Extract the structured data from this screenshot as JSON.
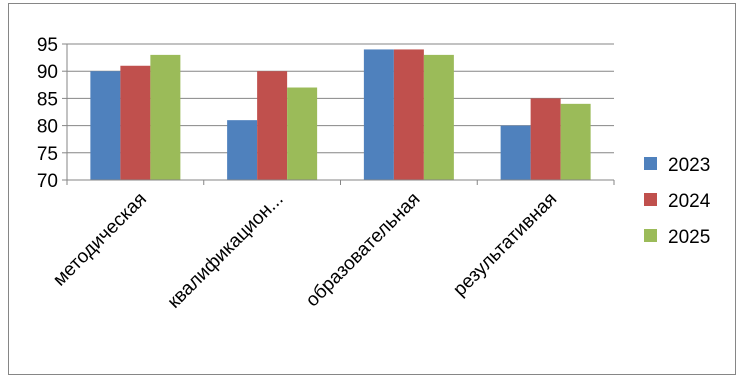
{
  "chart_data": {
    "type": "bar",
    "title": "",
    "xlabel": "",
    "ylabel": "",
    "categories": [
      "методическая",
      "квалификацион...",
      "образовательная",
      "результативная"
    ],
    "series": [
      {
        "name": "2023",
        "color": "#4F81BD",
        "values": [
          90,
          81,
          94,
          80
        ]
      },
      {
        "name": "2024",
        "color": "#C0504D",
        "values": [
          91,
          90,
          94,
          85
        ]
      },
      {
        "name": "2025",
        "color": "#9BBB59",
        "values": [
          93,
          87,
          93,
          84
        ]
      }
    ],
    "ylim": [
      70,
      95
    ],
    "yticks": [
      70,
      75,
      80,
      85,
      90,
      95
    ],
    "grid": true,
    "legend": "right"
  }
}
